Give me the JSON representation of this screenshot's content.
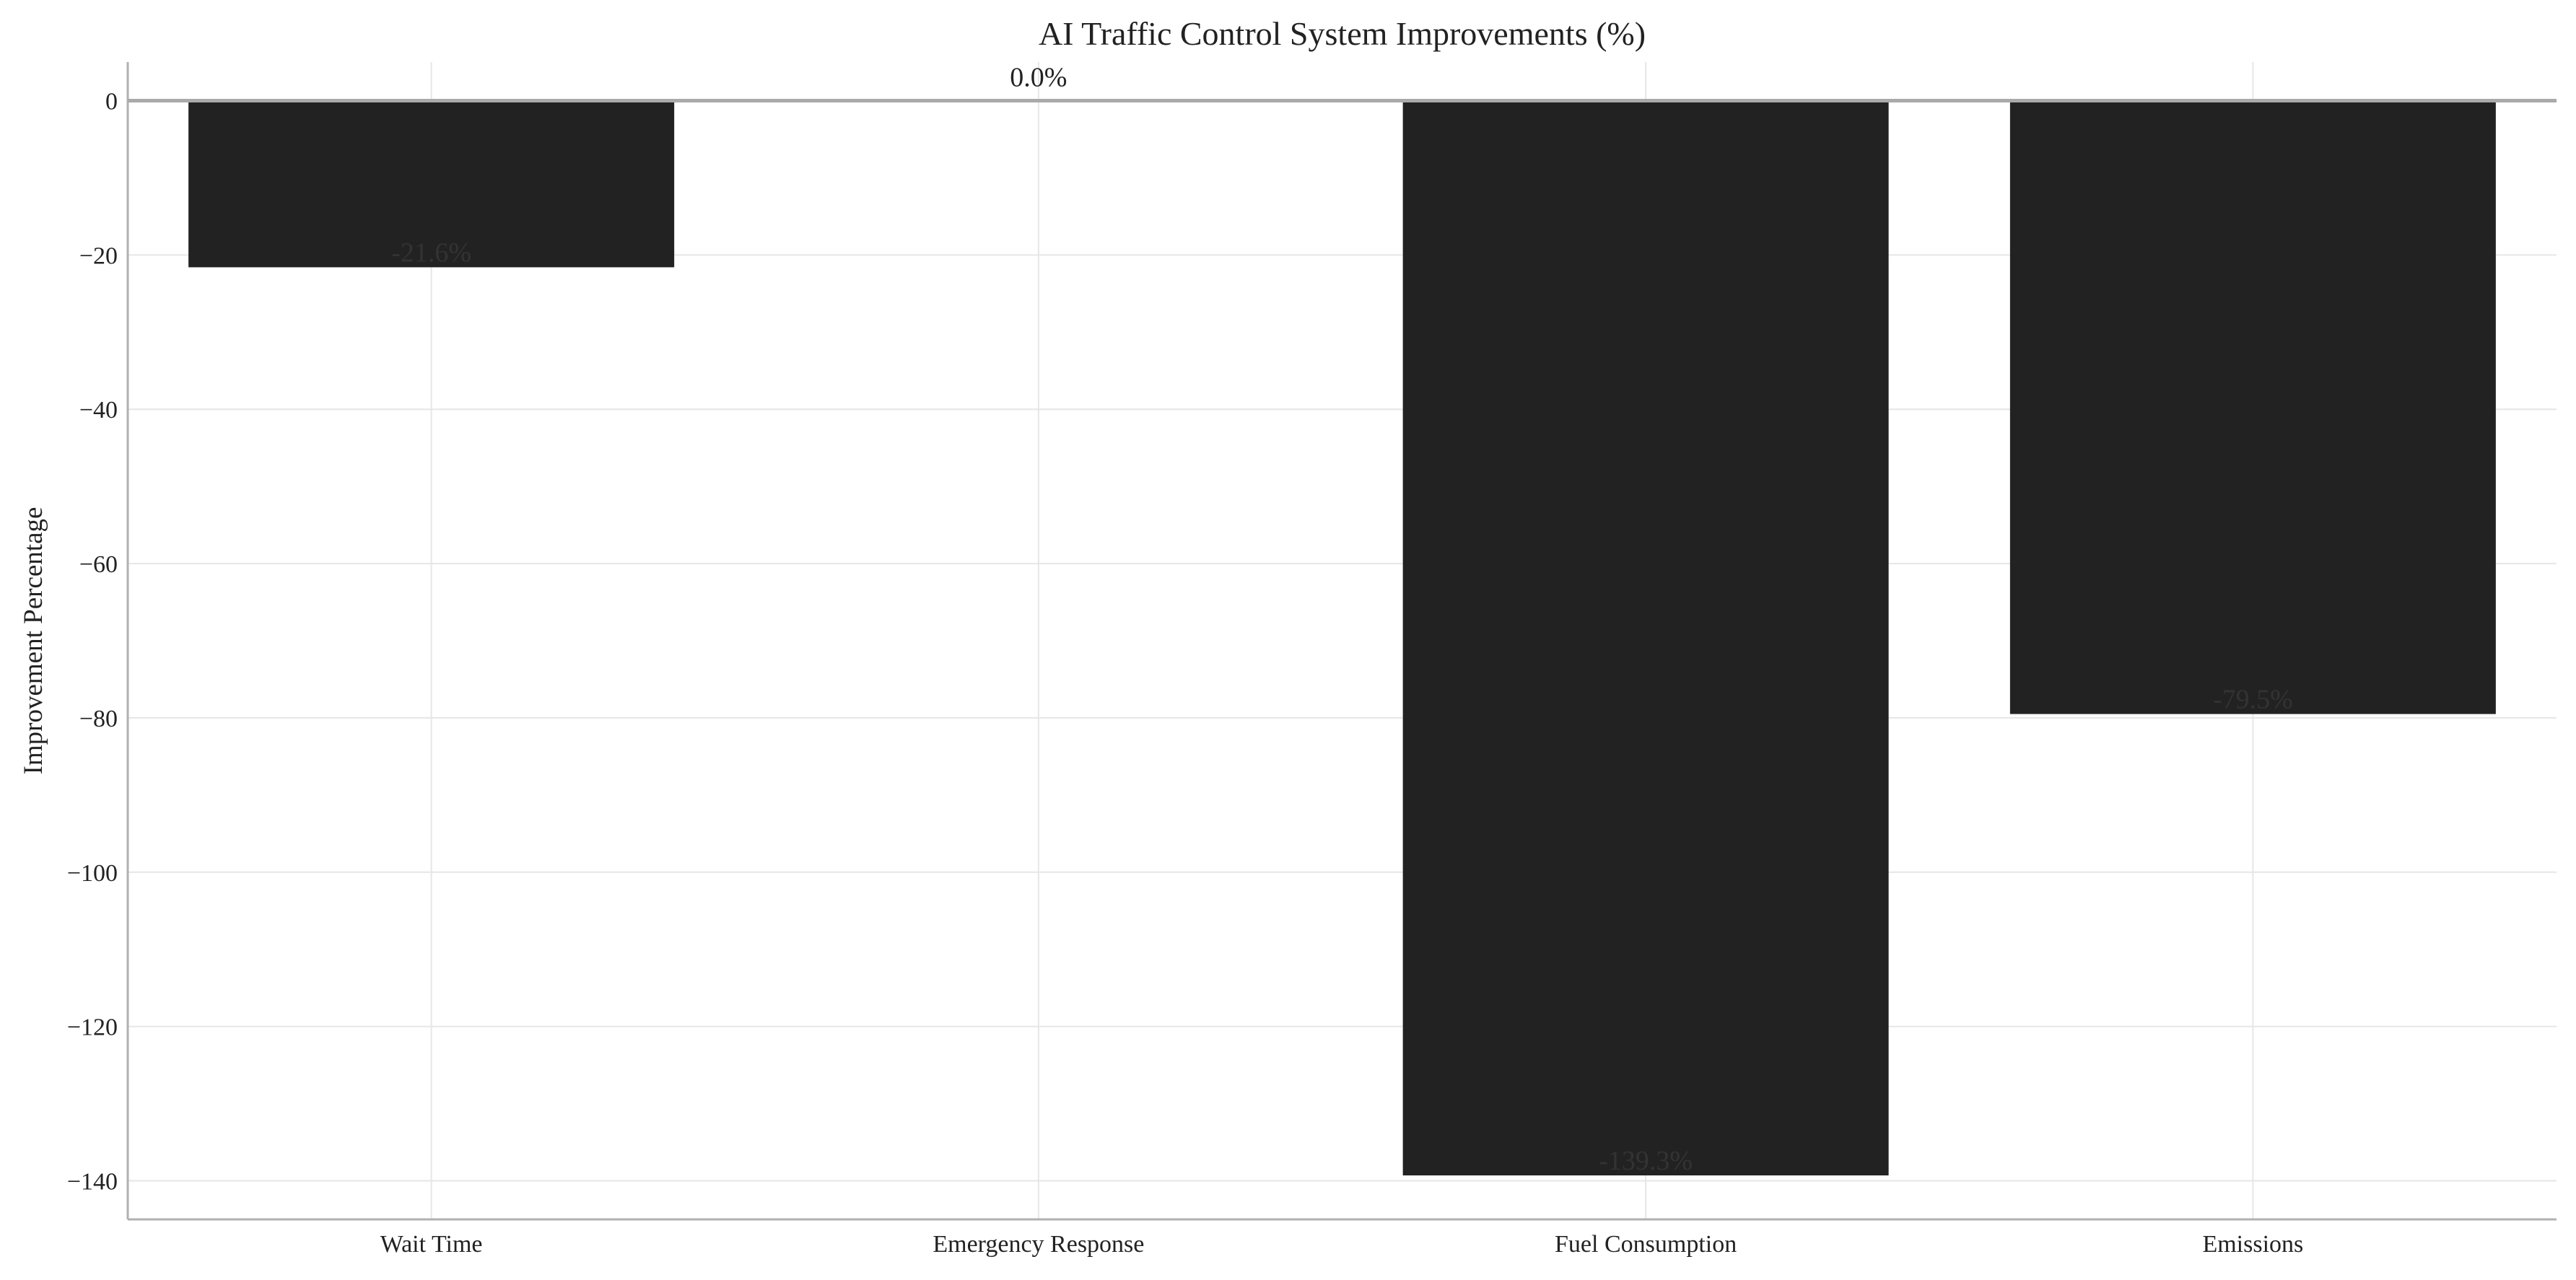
{
  "chart_data": {
    "type": "bar",
    "title": "AI Traffic Control System Improvements (%)",
    "xlabel": "",
    "ylabel": "Improvement Percentage",
    "categories": [
      "Wait Time",
      "Emergency Response",
      "Fuel Consumption",
      "Emissions"
    ],
    "values": [
      -21.6,
      0.0,
      -139.3,
      -79.5
    ],
    "value_labels": [
      "-21.6%",
      "0.0%",
      "-139.3%",
      "-79.5%"
    ],
    "ylim": [
      -145,
      5
    ],
    "yticks": [
      0,
      -20,
      -40,
      -60,
      -80,
      -100,
      -120,
      -140
    ],
    "ytick_labels": [
      "0",
      "−20",
      "−40",
      "−60",
      "−80",
      "−100",
      "−120",
      "−140"
    ],
    "grid": true,
    "legend": "none",
    "colors": {
      "bar": "#222222",
      "label_on_bar": "#333333",
      "label_above": "#222222",
      "grid": "#e6e6e6",
      "axis": "#b0b0b0",
      "zero_line": "#aaaaaa"
    }
  }
}
